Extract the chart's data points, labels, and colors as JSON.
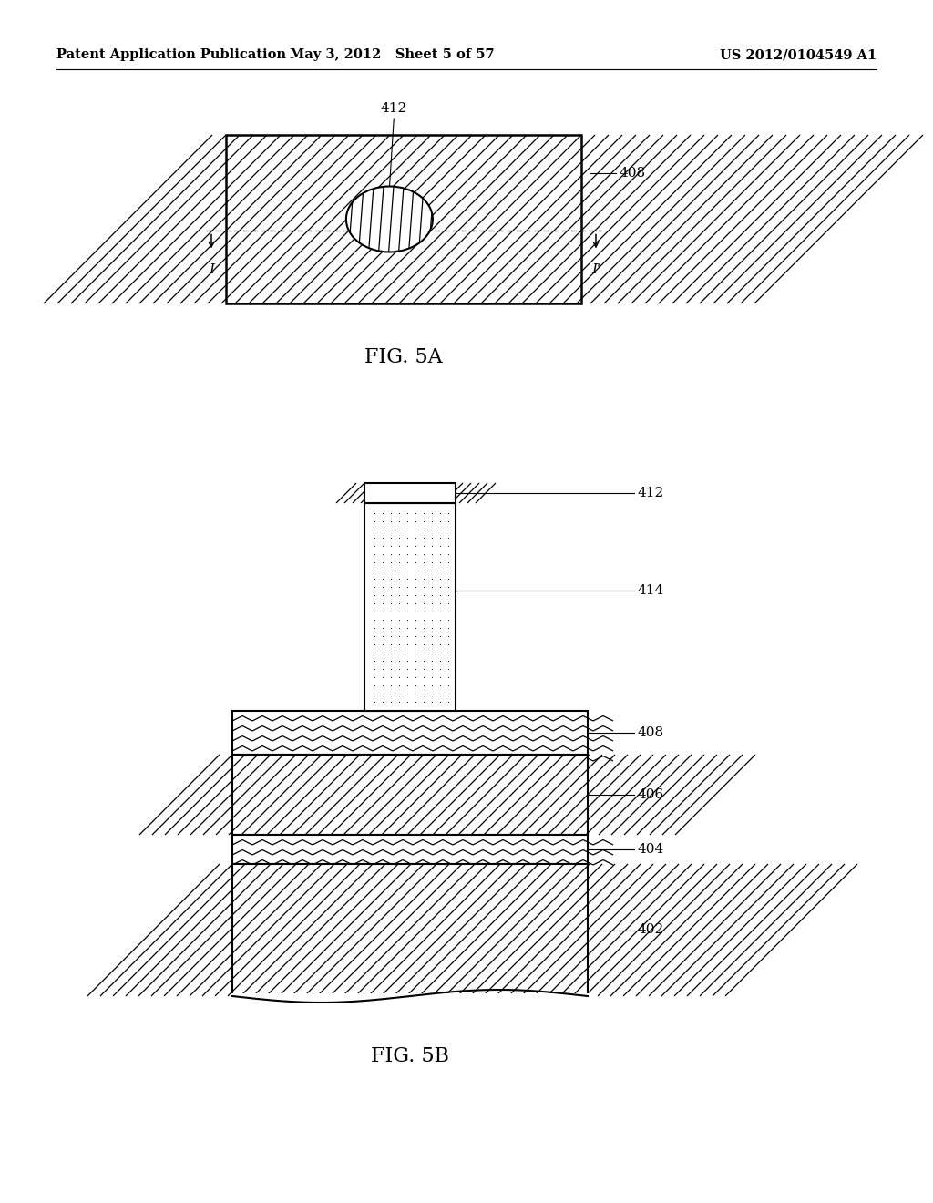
{
  "bg_color": "#ffffff",
  "header_left": "Patent Application Publication",
  "header_mid": "May 3, 2012   Sheet 5 of 57",
  "header_right": "US 2012/0104549 A1",
  "fig5a_label": "FIG. 5A",
  "fig5b_label": "FIG. 5B",
  "label_412_5a": "412",
  "label_408_5a": "408",
  "label_412_5b": "412",
  "label_414_5b": "414",
  "label_408_5b": "408",
  "label_406_5b": "406",
  "label_404_5b": "404",
  "label_402_5b": "402"
}
